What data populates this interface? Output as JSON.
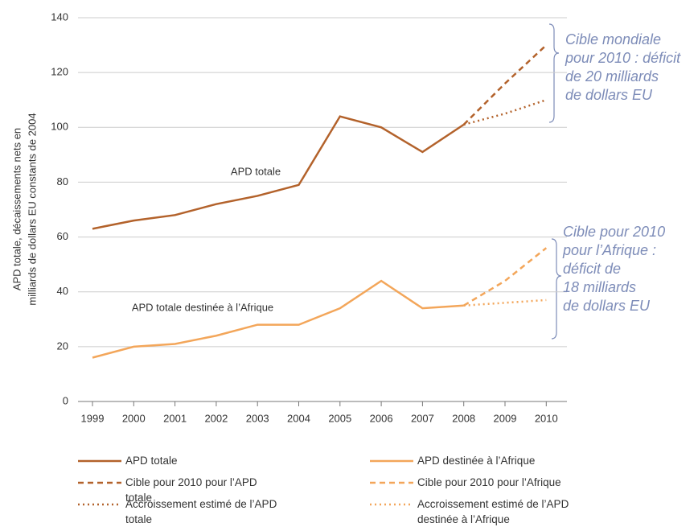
{
  "chart_data": {
    "type": "line",
    "ylabel": [
      "APD totale, décaissements nets en",
      "milliards de dollars EU constants de 2004"
    ],
    "categories": [
      "1999",
      "2000",
      "2001",
      "2002",
      "2003",
      "2004",
      "2005",
      "2006",
      "2007",
      "2008",
      "2009",
      "2010"
    ],
    "ylim": [
      0,
      140
    ],
    "yticks": [
      0,
      20,
      40,
      60,
      80,
      100,
      120,
      140
    ],
    "grid": true,
    "series": [
      {
        "name": "APD totale",
        "color": "#b3622b",
        "dash": "solid",
        "values": [
          63,
          66,
          68,
          72,
          75,
          79,
          104,
          100,
          91,
          101,
          null,
          null
        ]
      },
      {
        "name": "APD destinée à l’Afrique",
        "color": "#f3a65a",
        "dash": "solid",
        "values": [
          16,
          20,
          21,
          24,
          28,
          28,
          34,
          44,
          34,
          35,
          null,
          null
        ]
      },
      {
        "name": "Cible pour 2010 pour l’APD totale",
        "color": "#b3622b",
        "dash": "dashed",
        "values": [
          null,
          null,
          null,
          null,
          null,
          null,
          null,
          null,
          null,
          101,
          116,
          130
        ]
      },
      {
        "name": "Cible pour 2010 pour l’Afrique",
        "color": "#f3a65a",
        "dash": "dashed",
        "values": [
          null,
          null,
          null,
          null,
          null,
          null,
          null,
          null,
          null,
          35,
          44,
          56
        ]
      },
      {
        "name": "Accroissement estimé de l’APD totale",
        "color": "#b3622b",
        "dash": "dotted",
        "values": [
          null,
          null,
          null,
          null,
          null,
          null,
          null,
          null,
          null,
          101,
          105,
          110
        ]
      },
      {
        "name": "Accroissement estimé de l’APD destinée à l’Afrique",
        "color": "#f3a65a",
        "dash": "dotted",
        "values": [
          null,
          null,
          null,
          null,
          null,
          null,
          null,
          null,
          null,
          35,
          36,
          37
        ]
      }
    ],
    "annotations": [
      {
        "text": "APD totale"
      },
      {
        "text": "APD totale destinée à l’Afrique"
      },
      {
        "lines": [
          "Cible mondiale",
          "pour 2010 : déficit",
          "de 20 milliards",
          "de dollars EU"
        ]
      },
      {
        "lines": [
          "Cible pour 2010",
          "pour l’Afrique :",
          "déficit de",
          "18 milliards",
          "de dollars EU"
        ]
      }
    ]
  }
}
